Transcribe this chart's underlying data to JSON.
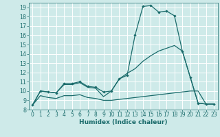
{
  "title": "",
  "xlabel": "Humidex (Indice chaleur)",
  "bg_color": "#ceeae9",
  "grid_color": "#ffffff",
  "line_color": "#1a6b6b",
  "xlim": [
    -0.5,
    23.5
  ],
  "ylim": [
    8,
    19.5
  ],
  "yticks": [
    8,
    9,
    10,
    11,
    12,
    13,
    14,
    15,
    16,
    17,
    18,
    19
  ],
  "xticks": [
    0,
    1,
    2,
    3,
    4,
    5,
    6,
    7,
    8,
    9,
    10,
    11,
    12,
    13,
    14,
    15,
    16,
    17,
    18,
    19,
    20,
    21,
    22,
    23
  ],
  "line1_x": [
    0,
    1,
    2,
    3,
    4,
    5,
    6,
    7,
    8,
    9,
    10,
    11,
    12,
    13,
    14,
    15,
    16,
    17,
    18,
    19,
    20,
    21,
    22,
    23
  ],
  "line1_y": [
    8.5,
    10.0,
    9.9,
    9.8,
    10.8,
    10.8,
    11.0,
    10.5,
    10.4,
    9.9,
    10.0,
    11.3,
    11.7,
    16.0,
    19.1,
    19.2,
    18.5,
    18.6,
    18.1,
    14.3,
    11.5,
    8.7,
    8.6,
    8.6
  ],
  "line2_x": [
    0,
    1,
    2,
    3,
    4,
    5,
    6,
    7,
    8,
    9,
    10,
    11,
    12,
    13,
    14,
    15,
    16,
    17,
    18,
    19,
    20,
    21,
    22,
    23
  ],
  "line2_y": [
    8.5,
    10.0,
    9.9,
    9.8,
    10.7,
    10.7,
    10.9,
    10.4,
    10.3,
    9.4,
    10.0,
    11.3,
    11.9,
    12.4,
    13.2,
    13.8,
    14.3,
    14.6,
    14.9,
    14.3,
    11.5,
    8.7,
    8.6,
    8.6
  ],
  "line3_x": [
    0,
    1,
    2,
    3,
    4,
    5,
    6,
    7,
    8,
    9,
    10,
    11,
    12,
    13,
    14,
    15,
    16,
    17,
    18,
    19,
    20,
    21,
    22,
    23
  ],
  "line3_y": [
    8.5,
    9.5,
    9.3,
    9.2,
    9.5,
    9.5,
    9.6,
    9.3,
    9.2,
    9.0,
    9.0,
    9.1,
    9.2,
    9.3,
    9.4,
    9.5,
    9.6,
    9.7,
    9.8,
    9.9,
    10.0,
    10.0,
    8.6,
    8.6
  ]
}
